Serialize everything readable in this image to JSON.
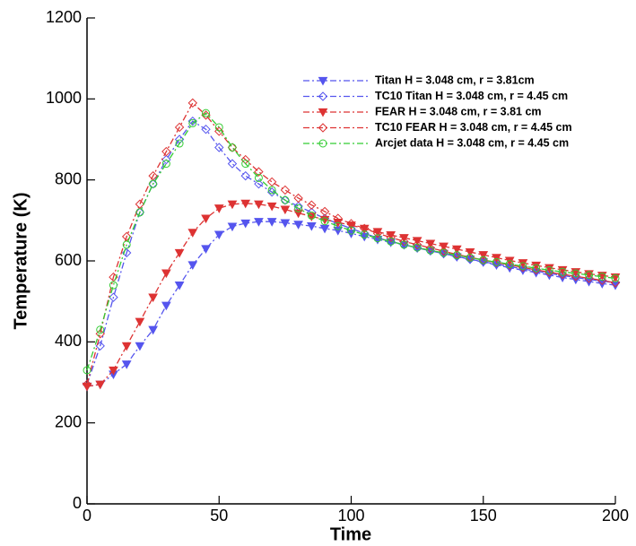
{
  "chart_data": {
    "type": "line",
    "x_label": "Time",
    "y_label": "Temperature (K)",
    "x": [
      0,
      5,
      10,
      15,
      20,
      25,
      30,
      35,
      40,
      45,
      50,
      55,
      60,
      65,
      70,
      75,
      80,
      85,
      90,
      95,
      100,
      105,
      110,
      115,
      120,
      125,
      130,
      135,
      140,
      145,
      150,
      155,
      160,
      165,
      170,
      175,
      180,
      185,
      190,
      195,
      200
    ],
    "xlim": [
      0,
      200
    ],
    "xticks": [
      0,
      50,
      100,
      150,
      200
    ],
    "ylim": [
      0,
      1200
    ],
    "yticks": [
      0,
      200,
      400,
      600,
      800,
      1000,
      1200
    ],
    "series": [
      {
        "name": "Titan H = 3.048 cm, r = 3.81cm",
        "color": "#5555ee",
        "marker": "triangle-down",
        "values": [
          290,
          295,
          320,
          345,
          390,
          430,
          490,
          540,
          590,
          630,
          665,
          685,
          693,
          697,
          697,
          694,
          690,
          686,
          680,
          675,
          668,
          660,
          653,
          646,
          640,
          632,
          625,
          618,
          610,
          604,
          597,
          590,
          583,
          577,
          571,
          565,
          559,
          554,
          549,
          544,
          540
        ]
      },
      {
        "name": "TC10 Titan H = 3.048 cm, r = 4.45 cm",
        "color": "#5555ee",
        "marker": "diamond",
        "values": [
          295,
          390,
          510,
          620,
          720,
          790,
          850,
          900,
          945,
          925,
          880,
          840,
          810,
          790,
          770,
          750,
          735,
          720,
          705,
          692,
          680,
          668,
          657,
          648,
          640,
          632,
          625,
          618,
          611,
          604,
          598,
          592,
          586,
          580,
          575,
          569,
          564,
          559,
          554,
          550,
          546
        ]
      },
      {
        "name": "FEAR H = 3.048 cm, r = 3.81 cm",
        "color": "#dd3333",
        "marker": "triangle-down",
        "values": [
          290,
          295,
          330,
          390,
          450,
          510,
          570,
          620,
          670,
          705,
          730,
          740,
          742,
          740,
          735,
          727,
          718,
          710,
          702,
          695,
          688,
          680,
          672,
          664,
          657,
          650,
          643,
          636,
          629,
          622,
          615,
          608,
          601,
          595,
          589,
          583,
          578,
          573,
          568,
          564,
          560
        ]
      },
      {
        "name": "TC10 FEAR H = 3.048 cm, r = 4.45 cm",
        "color": "#dd3333",
        "marker": "diamond",
        "values": [
          295,
          420,
          560,
          660,
          740,
          810,
          870,
          930,
          990,
          960,
          920,
          880,
          850,
          820,
          795,
          775,
          755,
          738,
          722,
          705,
          692,
          680,
          668,
          658,
          648,
          640,
          632,
          624,
          616,
          609,
          602,
          596,
          590,
          584,
          578,
          572,
          567,
          562,
          557,
          552,
          546
        ]
      },
      {
        "name": "Arcjet data H = 3.048 cm, r = 4.45 cm",
        "color": "#33cc33",
        "marker": "circle",
        "values": [
          330,
          430,
          540,
          640,
          720,
          790,
          840,
          890,
          940,
          965,
          930,
          880,
          840,
          805,
          775,
          750,
          730,
          712,
          698,
          686,
          675,
          665,
          656,
          648,
          640,
          633,
          626,
          620,
          614,
          608,
          602,
          597,
          592,
          587,
          582,
          577,
          573,
          569,
          565,
          561,
          557
        ]
      }
    ]
  }
}
